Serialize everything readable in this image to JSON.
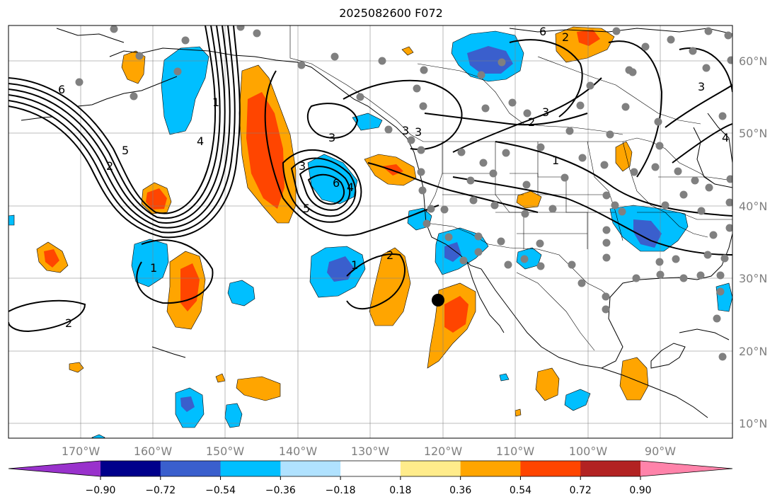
{
  "title": "2025082600 F072",
  "map": {
    "lon_range": [
      -180,
      -80
    ],
    "lat_range": [
      8,
      65
    ],
    "lon_tick_labels": [
      "170°W",
      "160°W",
      "150°W",
      "140°W",
      "130°W",
      "120°W",
      "110°W",
      "100°W",
      "90°W"
    ],
    "lat_tick_labels": [
      "10°N",
      "20°N",
      "30°N",
      "40°N",
      "50°N",
      "60°N"
    ]
  },
  "colorbar": {
    "colors": [
      "#9932cc",
      "#00008b",
      "#3a5fcd",
      "#00bfff",
      "#b0e2ff",
      "#ffffff",
      "#ffec8b",
      "#ffa500",
      "#ff4500",
      "#b22222",
      "#ff83aa"
    ],
    "tick_labels": [
      "−0.90",
      "−0.72",
      "−0.54",
      "−0.36",
      "−0.18",
      "0.18",
      "0.36",
      "0.54",
      "0.72",
      "0.90"
    ],
    "extend": "both"
  },
  "contour_labels": [
    "6",
    "5",
    "2",
    "1",
    "4",
    "3",
    "3",
    "3",
    "3",
    "6",
    "4",
    "5",
    "2",
    "1",
    "1",
    "2",
    "2",
    "3",
    "1",
    "2",
    "3",
    "6",
    "4"
  ],
  "station_marker_color": "#808080",
  "highlight_marker_color": "#000000"
}
